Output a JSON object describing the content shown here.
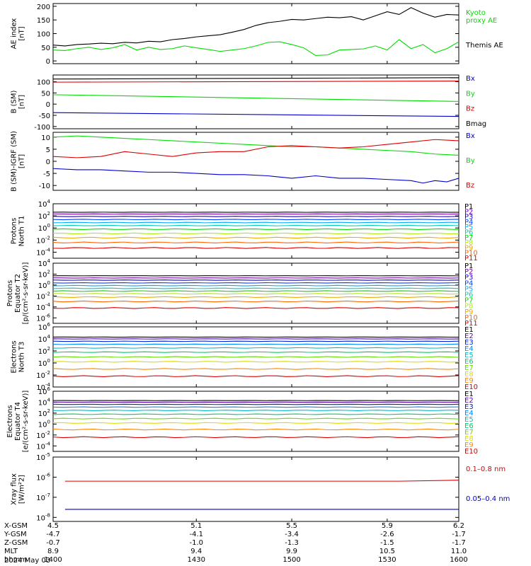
{
  "chart_data": [
    {
      "type": "line",
      "ylabel": [
        "AE index",
        "[nT]"
      ],
      "ylim": [
        -10,
        210
      ],
      "yticks": [
        200,
        150,
        100,
        50,
        0
      ],
      "series": [
        {
          "name": "Kyoto proxy AE",
          "color": "#00dd00",
          "legend": [
            "Kyoto",
            "proxy AE"
          ],
          "x": [
            4.5,
            4.55,
            4.6,
            4.65,
            4.7,
            4.75,
            4.8,
            4.85,
            4.9,
            4.95,
            5.0,
            5.05,
            5.1,
            5.15,
            5.2,
            5.25,
            5.3,
            5.35,
            5.4,
            5.45,
            5.5,
            5.55,
            5.6,
            5.65,
            5.7,
            5.75,
            5.8,
            5.85,
            5.9,
            5.95,
            6.0,
            6.05,
            6.1,
            6.15,
            6.2
          ],
          "values": [
            40,
            38,
            45,
            50,
            42,
            48,
            60,
            40,
            50,
            42,
            45,
            55,
            48,
            42,
            35,
            40,
            45,
            55,
            68,
            70,
            60,
            48,
            20,
            22,
            40,
            42,
            44,
            55,
            40,
            78,
            45,
            60,
            30,
            45,
            70
          ]
        },
        {
          "name": "Themis AE",
          "color": "#000000",
          "legend": [
            "Themis AE"
          ],
          "x": [
            4.5,
            4.55,
            4.6,
            4.65,
            4.7,
            4.75,
            4.8,
            4.85,
            4.9,
            4.95,
            5.0,
            5.05,
            5.1,
            5.15,
            5.2,
            5.25,
            5.3,
            5.35,
            5.4,
            5.45,
            5.5,
            5.55,
            5.6,
            5.65,
            5.7,
            5.75,
            5.8,
            5.85,
            5.9,
            5.95,
            6.0,
            6.05,
            6.1,
            6.15,
            6.2
          ],
          "values": [
            58,
            55,
            60,
            62,
            65,
            63,
            68,
            66,
            72,
            70,
            78,
            82,
            88,
            92,
            96,
            105,
            115,
            130,
            140,
            145,
            152,
            150,
            155,
            160,
            158,
            162,
            150,
            165,
            180,
            170,
            195,
            175,
            160,
            170,
            168
          ]
        }
      ]
    },
    {
      "type": "line",
      "ylabel": [
        "B (SM)",
        "[nT]"
      ],
      "ylim": [
        -110,
        130
      ],
      "yticks": [
        100,
        50,
        0,
        -50,
        -100
      ],
      "series": [
        {
          "name": "Bx",
          "color": "#0000cc",
          "x": [
            4.5,
            6.2
          ],
          "values": [
            -38,
            -55
          ]
        },
        {
          "name": "By",
          "color": "#00dd00",
          "x": [
            4.5,
            6.2
          ],
          "values": [
            42,
            12
          ]
        },
        {
          "name": "Bz",
          "color": "#dd0000",
          "x": [
            4.5,
            6.2
          ],
          "values": [
            98,
            103
          ]
        },
        {
          "name": "Bmag",
          "color": "#000000",
          "x": [
            4.5,
            6.2
          ],
          "values": [
            112,
            118
          ]
        }
      ]
    },
    {
      "type": "line",
      "ylabel": [
        "B (SM)-IGRF (SM)",
        "[nT]"
      ],
      "ylim": [
        -12,
        12
      ],
      "yticks": [
        10,
        5,
        0,
        -5,
        -10
      ],
      "series": [
        {
          "name": "Bx",
          "color": "#0000cc",
          "x": [
            4.5,
            4.6,
            4.7,
            4.8,
            4.9,
            5.0,
            5.1,
            5.2,
            5.3,
            5.4,
            5.5,
            5.6,
            5.7,
            5.8,
            5.9,
            6.0,
            6.05,
            6.1,
            6.15,
            6.2
          ],
          "values": [
            -3,
            -3.5,
            -3.5,
            -4,
            -4.5,
            -4.5,
            -5,
            -5.5,
            -5.5,
            -6,
            -7,
            -6,
            -7,
            -7,
            -7.5,
            -8,
            -9,
            -8,
            -8.5,
            -7
          ]
        },
        {
          "name": "By",
          "color": "#00dd00",
          "x": [
            4.5,
            4.6,
            4.7,
            4.8,
            4.9,
            5.0,
            5.1,
            5.2,
            5.3,
            5.4,
            5.5,
            5.6,
            5.7,
            5.8,
            5.9,
            6.0,
            6.1,
            6.2
          ],
          "values": [
            10,
            10.5,
            10,
            9.5,
            9,
            8.5,
            8,
            7.5,
            7,
            6.5,
            6,
            6,
            5.5,
            5,
            4.5,
            4,
            3,
            2.5
          ]
        },
        {
          "name": "Bz",
          "color": "#dd0000",
          "x": [
            4.5,
            4.6,
            4.7,
            4.8,
            4.9,
            5.0,
            5.1,
            5.2,
            5.3,
            5.4,
            5.5,
            5.6,
            5.7,
            5.8,
            5.9,
            6.0,
            6.1,
            6.2
          ],
          "values": [
            2,
            1.5,
            2,
            4,
            3,
            2,
            3.5,
            4,
            4,
            6,
            6.5,
            6,
            5.5,
            6,
            7,
            8,
            9,
            8.5
          ]
        }
      ]
    },
    {
      "type": "line",
      "ylabel": [
        "Protons",
        "North T1"
      ],
      "ylog": [
        -5,
        4
      ],
      "yticks": [
        4,
        2,
        0,
        -2,
        -4
      ],
      "channels": [
        "P1",
        "P2",
        "P3",
        "P4",
        "P5",
        "P6",
        "P7",
        "P8",
        "P9",
        "P10",
        "P11"
      ],
      "channel_colors": [
        "#000000",
        "#7700aa",
        "#2200cc",
        "#0044ff",
        "#00aaff",
        "#00ccbb",
        "#00dd00",
        "#aaee00",
        "#eeaa00",
        "#ff6600",
        "#dd0000"
      ],
      "levels": [
        2.6,
        2.3,
        1.9,
        1.4,
        0.9,
        0.4,
        -0.2,
        -0.9,
        -1.6,
        -2.4,
        -3.3
      ]
    },
    {
      "type": "line",
      "ylabel": [
        "Protons",
        "Equator T2",
        "[p/(cm²-s-sr-keV)]"
      ],
      "ylog": [
        -7,
        4
      ],
      "yticks": [
        4,
        2,
        0,
        -2,
        -4,
        -6
      ],
      "channels": [
        "P1",
        "P2",
        "P3",
        "P4",
        "P5",
        "P6",
        "P7",
        "P8",
        "P9",
        "P10",
        "P11"
      ],
      "channel_colors": [
        "#000000",
        "#7700aa",
        "#2200cc",
        "#0044ff",
        "#00aaff",
        "#00ccbb",
        "#00dd00",
        "#aaee00",
        "#eeaa00",
        "#ff6600",
        "#dd0000"
      ],
      "levels": [
        1.7,
        1.3,
        0.9,
        0.4,
        -0.1,
        -0.6,
        -1.1,
        -1.6,
        -2.2,
        -3.0,
        -4.2
      ]
    },
    {
      "type": "line",
      "ylabel": [
        "Electrons",
        "North T3"
      ],
      "ylog": [
        -4,
        6
      ],
      "yticks": [
        6,
        4,
        2,
        0,
        -2,
        -4
      ],
      "channels": [
        "E1",
        "E2",
        "E3",
        "E4",
        "E5",
        "E6",
        "E7",
        "E8",
        "E9",
        "E10"
      ],
      "channel_colors": [
        "#000000",
        "#5500aa",
        "#0022dd",
        "#0088ff",
        "#00bbcc",
        "#00cc66",
        "#66dd00",
        "#dddd00",
        "#ff8800",
        "#dd0000"
      ],
      "levels": [
        4.3,
        4.0,
        3.6,
        3.1,
        2.5,
        1.8,
        1.0,
        0.2,
        -1.0,
        -2.2
      ]
    },
    {
      "type": "line",
      "ylabel": [
        "Electrons",
        "Equator T4",
        "[e/(cm²-s-sr-keV)]"
      ],
      "ylog": [
        -5,
        6
      ],
      "yticks": [
        6,
        4,
        2,
        0,
        -2,
        -4
      ],
      "channels": [
        "E1",
        "E2",
        "E3",
        "E4",
        "E5",
        "E6",
        "E7",
        "E8",
        "E9",
        "E10"
      ],
      "channel_colors": [
        "#000000",
        "#5500aa",
        "#0022dd",
        "#0088ff",
        "#00bbcc",
        "#00cc66",
        "#66dd00",
        "#dddd00",
        "#ff8800",
        "#dd0000"
      ],
      "levels": [
        4.3,
        4.0,
        3.6,
        3.1,
        2.5,
        1.8,
        1.0,
        0.2,
        -1.0,
        -2.4
      ]
    },
    {
      "type": "line",
      "ylabel": [
        "Xray flux",
        "[W/m²2]"
      ],
      "ylog": [
        -8.2,
        -5
      ],
      "yticks": [
        -5,
        -6,
        -7,
        -8
      ],
      "series": [
        {
          "name": "0.1–0.8 nm",
          "color": "#dd0000",
          "x": [
            4.55,
            4.58,
            4.62,
            4.65,
            5.35,
            5.37,
            5.45,
            5.48,
            5.55,
            5.58,
            5.95,
            6.2
          ],
          "values": [
            -6.2,
            -6.2,
            -6.2,
            -6.2,
            -6.2,
            -6.2,
            -6.2,
            -6.2,
            -6.2,
            -6.2,
            -6.2,
            -6.15
          ]
        },
        {
          "name": "0.05–0.4 nm",
          "color": "#0000cc",
          "x": [
            4.55,
            4.58,
            4.62,
            4.65,
            5.35,
            5.37,
            5.45,
            5.48,
            5.55,
            5.58,
            5.95,
            6.2
          ],
          "values": [
            -7.6,
            -7.6,
            -7.6,
            -7.6,
            -7.6,
            -7.6,
            -7.6,
            -7.6,
            -7.6,
            -7.6,
            -7.6,
            -7.6
          ]
        }
      ]
    }
  ],
  "xaxis": {
    "xlim": [
      4.5,
      6.2
    ],
    "tick_x": [
      4.5,
      5.1,
      5.5,
      5.9,
      6.2
    ],
    "rows": [
      {
        "label": "X-GSM",
        "values": [
          "4.5",
          "5.1",
          "5.5",
          "5.9",
          "6.2"
        ]
      },
      {
        "label": "Y-GSM",
        "values": [
          "-4.7",
          "-4.1",
          "-3.4",
          "-2.6",
          "-1.7"
        ]
      },
      {
        "label": "Z-GSM",
        "values": [
          "-0.7",
          "-1.0",
          "-1.3",
          "-1.5",
          "-1.7"
        ]
      },
      {
        "label": "MLT",
        "values": [
          "8.9",
          "9.4",
          "9.9",
          "10.5",
          "11.0"
        ]
      },
      {
        "label": "hhmm",
        "values": [
          "1400",
          "1430",
          "1500",
          "1530",
          "1600"
        ]
      }
    ],
    "date": "2024 May 03"
  }
}
